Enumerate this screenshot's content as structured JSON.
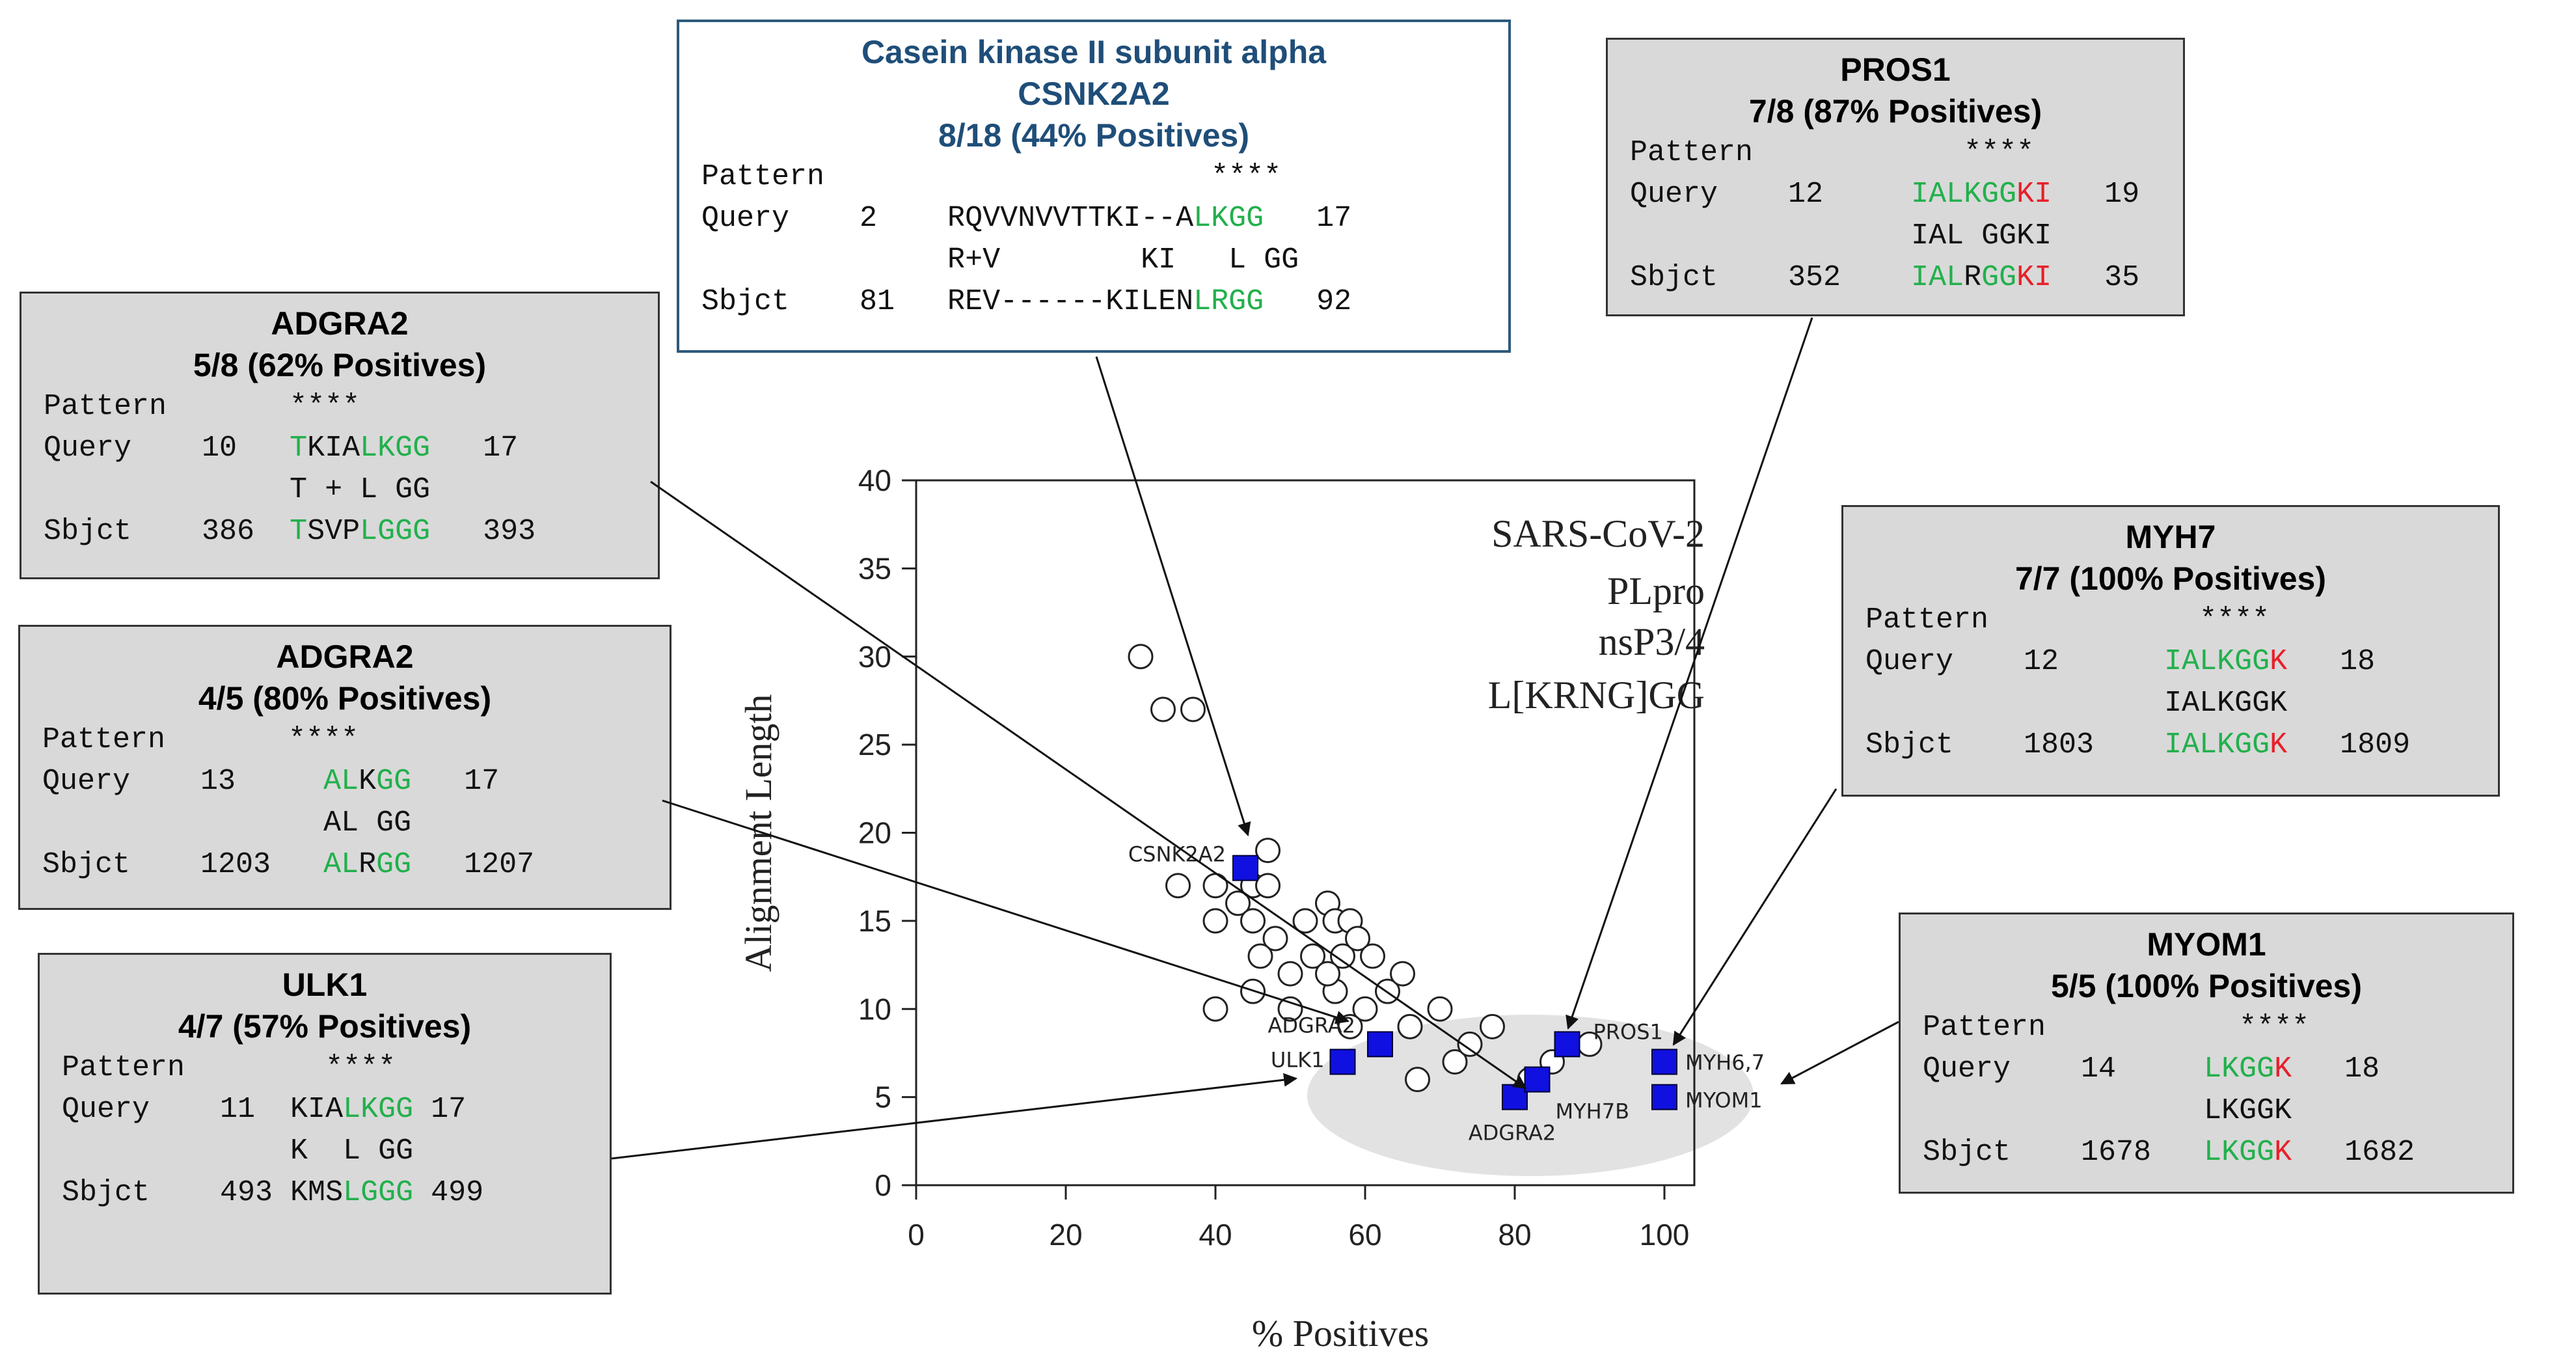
{
  "chart_data": {
    "type": "scatter",
    "xlabel": "% Positives",
    "ylabel": "Alignment Length",
    "xlim": [
      0,
      100
    ],
    "ylim": [
      0,
      40
    ],
    "xticks": [
      0,
      20,
      40,
      60,
      80,
      100
    ],
    "yticks": [
      0,
      5,
      10,
      15,
      20,
      25,
      30,
      35,
      40
    ],
    "annotation_lines": [
      "SARS-CoV-2",
      "PLpro",
      "nsP3/4",
      "L[KRNG]GG"
    ],
    "series": [
      {
        "name": "all matches",
        "marker": "open-circle",
        "points": [
          [
            30,
            30
          ],
          [
            33,
            27
          ],
          [
            37,
            27
          ],
          [
            35,
            17
          ],
          [
            40,
            17
          ],
          [
            43,
            16
          ],
          [
            45,
            17
          ],
          [
            47,
            19
          ],
          [
            47,
            17
          ],
          [
            40,
            15
          ],
          [
            45,
            15
          ],
          [
            48,
            14
          ],
          [
            46,
            13
          ],
          [
            52,
            15
          ],
          [
            53,
            13
          ],
          [
            55,
            16
          ],
          [
            56,
            15
          ],
          [
            58,
            15
          ],
          [
            57,
            13
          ],
          [
            59,
            14
          ],
          [
            61,
            13
          ],
          [
            63,
            11
          ],
          [
            65,
            12
          ],
          [
            56,
            11
          ],
          [
            60,
            10
          ],
          [
            55,
            12
          ],
          [
            50,
            12
          ],
          [
            45,
            11
          ],
          [
            40,
            10
          ],
          [
            50,
            10
          ],
          [
            58,
            9
          ],
          [
            62,
            8
          ],
          [
            66,
            9
          ],
          [
            70,
            10
          ],
          [
            67,
            6
          ],
          [
            72,
            7
          ],
          [
            74,
            8
          ],
          [
            77,
            9
          ],
          [
            83,
            6
          ],
          [
            85,
            7
          ],
          [
            82,
            6
          ],
          [
            90,
            8
          ]
        ]
      },
      {
        "name": "highlighted",
        "marker": "filled-square",
        "color": "#1010e0",
        "points": [
          {
            "x": 44,
            "y": 18,
            "label": "CSNK2A2"
          },
          {
            "x": 62,
            "y": 8,
            "label": "ADGRA2"
          },
          {
            "x": 57,
            "y": 7,
            "label": "ULK1"
          },
          {
            "x": 80,
            "y": 5,
            "label": "ADGRA2"
          },
          {
            "x": 83,
            "y": 6,
            "label": "MYH7B"
          },
          {
            "x": 87,
            "y": 8,
            "label": "PROS1"
          },
          {
            "x": 100,
            "y": 7,
            "label": "MYH6,7"
          },
          {
            "x": 100,
            "y": 5,
            "label": "MYOM1"
          }
        ]
      }
    ]
  },
  "boxes": {
    "csnk": {
      "header": [
        "Casein kinase II subunit alpha",
        "CSNK2A2",
        "8/18 (44% Positives)"
      ],
      "lines": [
        [
          {
            "t": "Pattern                      ****"
          }
        ],
        [
          {
            "t": "Query    2    RQVVNVVTTKI--A"
          },
          {
            "t": "LKGG",
            "c": "g"
          },
          {
            "t": "   17"
          }
        ],
        [
          {
            "t": "              R+V        KI   L GG"
          }
        ],
        [
          {
            "t": "Sbjct    81   REV------KILEN"
          },
          {
            "t": "LRGG",
            "c": "g"
          },
          {
            "t": "   92"
          }
        ]
      ]
    },
    "pros1": {
      "header": [
        "PROS1",
        "7/8 (87% Positives)"
      ],
      "lines": [
        [
          {
            "t": "Pattern            ****"
          }
        ],
        [
          {
            "t": "Query    12     "
          },
          {
            "t": "IALK",
            "c": "g"
          },
          {
            "t": "GG",
            "c": "g"
          },
          {
            "t": "KI",
            "c": "r"
          },
          {
            "t": "   19"
          }
        ],
        [
          {
            "t": "                IAL GGKI"
          }
        ],
        [
          {
            "t": "Sbjct    352    "
          },
          {
            "t": "IAL",
            "c": "g"
          },
          {
            "t": "R"
          },
          {
            "t": "GG",
            "c": "g"
          },
          {
            "t": "KI",
            "c": "r"
          },
          {
            "t": "   35"
          }
        ]
      ]
    },
    "adgra2a": {
      "header": [
        "ADGRA2",
        "5/8 (62% Positives)"
      ],
      "lines": [
        [
          {
            "t": "Pattern       ****"
          }
        ],
        [
          {
            "t": "Query    10   "
          },
          {
            "t": "T",
            "c": "g"
          },
          {
            "t": "KIA"
          },
          {
            "t": "LK",
            "c": "g"
          },
          {
            "t": "GG",
            "c": "g"
          },
          {
            "t": "   17"
          }
        ],
        [
          {
            "t": "              T + L GG"
          }
        ],
        [
          {
            "t": "Sbjct    386  "
          },
          {
            "t": "T",
            "c": "g"
          },
          {
            "t": "SVP"
          },
          {
            "t": "LG",
            "c": "g"
          },
          {
            "t": "GG",
            "c": "g"
          },
          {
            "t": "   393"
          }
        ]
      ]
    },
    "adgra2b": {
      "header": [
        "ADGRA2",
        "4/5 (80% Positives)"
      ],
      "lines": [
        [
          {
            "t": "Pattern       ****"
          }
        ],
        [
          {
            "t": "Query    13     "
          },
          {
            "t": "AL",
            "c": "g"
          },
          {
            "t": "K"
          },
          {
            "t": "GG",
            "c": "g"
          },
          {
            "t": "   17"
          }
        ],
        [
          {
            "t": "                AL GG"
          }
        ],
        [
          {
            "t": "Sbjct    1203   "
          },
          {
            "t": "AL",
            "c": "g"
          },
          {
            "t": "R"
          },
          {
            "t": "GG",
            "c": "g"
          },
          {
            "t": "   1207"
          }
        ]
      ]
    },
    "ulk1": {
      "header": [
        "ULK1",
        "4/7 (57% Positives)"
      ],
      "lines": [
        [
          {
            "t": "Pattern        ****"
          }
        ],
        [
          {
            "t": "Query    11  KIA"
          },
          {
            "t": "LK",
            "c": "g"
          },
          {
            "t": "GG",
            "c": "g"
          },
          {
            "t": " 17"
          }
        ],
        [
          {
            "t": "             K  L GG"
          }
        ],
        [
          {
            "t": "Sbjct    493 KMS"
          },
          {
            "t": "LG",
            "c": "g"
          },
          {
            "t": "GG",
            "c": "g"
          },
          {
            "t": " 499"
          }
        ]
      ]
    },
    "myh7": {
      "header": [
        "MYH7",
        "7/7 (100% Positives)"
      ],
      "lines": [
        [
          {
            "t": "Pattern            ****"
          }
        ],
        [
          {
            "t": "Query    12      "
          },
          {
            "t": "IALKGG",
            "c": "g"
          },
          {
            "t": "K",
            "c": "r"
          },
          {
            "t": "   18"
          }
        ],
        [
          {
            "t": "                 IALKGGK"
          }
        ],
        [
          {
            "t": "Sbjct    1803    "
          },
          {
            "t": "IALKGG",
            "c": "g"
          },
          {
            "t": "K",
            "c": "r"
          },
          {
            "t": "   1809"
          }
        ]
      ]
    },
    "myom1": {
      "header": [
        "MYOM1",
        "5/5 (100% Positives)"
      ],
      "lines": [
        [
          {
            "t": "Pattern           ****"
          }
        ],
        [
          {
            "t": "Query    14     "
          },
          {
            "t": "LKGG",
            "c": "g"
          },
          {
            "t": "K",
            "c": "r"
          },
          {
            "t": "   18"
          }
        ],
        [
          {
            "t": "                LKGGK"
          }
        ],
        [
          {
            "t": "Sbjct    1678   "
          },
          {
            "t": "LKGG",
            "c": "g"
          },
          {
            "t": "K",
            "c": "r"
          },
          {
            "t": "   1682"
          }
        ]
      ]
    }
  }
}
